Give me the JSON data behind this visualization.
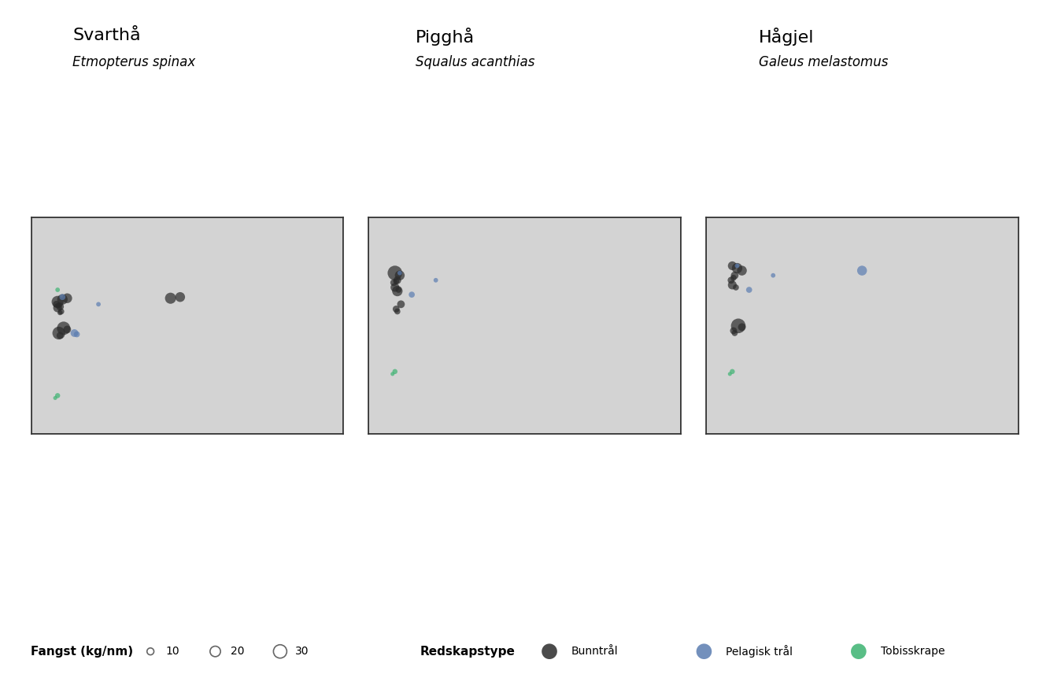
{
  "titles": [
    "Svarthå",
    "Pigghå",
    "Hågjel"
  ],
  "subtitles": [
    "Etmopterus spinax",
    "Squalus acanthias",
    "Galeus melastomus"
  ],
  "background_color": "#ffffff",
  "map_bg_color": "#d3d3d3",
  "land_color": "#d3d3d3",
  "sea_color": "#e8e8e8",
  "map_border_color": "#333333",
  "grid_color": "#cccccc",
  "legend_fangst_label": "Fangst (kg/nm)",
  "legend_redskaps_label": "Redskapstype",
  "legend_sizes": [
    10,
    20,
    30
  ],
  "legend_size_labels": [
    "10",
    "20",
    "30"
  ],
  "gear_types": [
    "Bunntrål",
    "Pelagisk trål",
    "Tobisskrape"
  ],
  "gear_colors": [
    "#2b2b2b",
    "#5b7db1",
    "#3cb371"
  ],
  "map_xlim": [
    4.0,
    17.0
  ],
  "map_ylim": [
    56.5,
    65.5
  ],
  "norway_coast_color": "#000000",
  "panel_bg": "#dcdcdc",
  "svarthaa_points": [
    {
      "lon": 5.1,
      "lat": 62.0,
      "size": 25,
      "gear": 0
    },
    {
      "lon": 5.3,
      "lat": 62.1,
      "size": 20,
      "gear": 0
    },
    {
      "lon": 5.5,
      "lat": 62.15,
      "size": 18,
      "gear": 0
    },
    {
      "lon": 5.2,
      "lat": 61.8,
      "size": 12,
      "gear": 0
    },
    {
      "lon": 5.15,
      "lat": 61.85,
      "size": 8,
      "gear": 0
    },
    {
      "lon": 5.05,
      "lat": 61.9,
      "size": 10,
      "gear": 0
    },
    {
      "lon": 5.1,
      "lat": 61.75,
      "size": 15,
      "gear": 0
    },
    {
      "lon": 5.25,
      "lat": 61.6,
      "size": 8,
      "gear": 0
    },
    {
      "lon": 5.2,
      "lat": 61.55,
      "size": 6,
      "gear": 0
    },
    {
      "lon": 5.35,
      "lat": 60.9,
      "size": 30,
      "gear": 0
    },
    {
      "lon": 5.5,
      "lat": 60.85,
      "size": 12,
      "gear": 0
    },
    {
      "lon": 5.15,
      "lat": 60.7,
      "size": 28,
      "gear": 0
    },
    {
      "lon": 5.2,
      "lat": 60.6,
      "size": 10,
      "gear": 0
    },
    {
      "lon": 5.1,
      "lat": 58.1,
      "size": 6,
      "gear": 2
    },
    {
      "lon": 5.3,
      "lat": 62.2,
      "size": 8,
      "gear": 1
    },
    {
      "lon": 6.8,
      "lat": 61.9,
      "size": 5,
      "gear": 1
    },
    {
      "lon": 10.2,
      "lat": 62.2,
      "size": 18,
      "gear": 0
    },
    {
      "lon": 9.8,
      "lat": 62.15,
      "size": 22,
      "gear": 0
    },
    {
      "lon": 5.8,
      "lat": 60.7,
      "size": 12,
      "gear": 1
    },
    {
      "lon": 5.9,
      "lat": 60.65,
      "size": 8,
      "gear": 1
    },
    {
      "lon": 5.1,
      "lat": 62.5,
      "size": 5,
      "gear": 2
    },
    {
      "lon": 5.0,
      "lat": 58.0,
      "size": 4,
      "gear": 2
    }
  ],
  "pigghaa_points": [
    {
      "lon": 5.1,
      "lat": 63.2,
      "size": 35,
      "gear": 0
    },
    {
      "lon": 5.3,
      "lat": 63.1,
      "size": 18,
      "gear": 0
    },
    {
      "lon": 5.2,
      "lat": 62.9,
      "size": 12,
      "gear": 0
    },
    {
      "lon": 5.15,
      "lat": 62.85,
      "size": 8,
      "gear": 0
    },
    {
      "lon": 5.05,
      "lat": 62.8,
      "size": 10,
      "gear": 0
    },
    {
      "lon": 5.1,
      "lat": 62.6,
      "size": 15,
      "gear": 0
    },
    {
      "lon": 5.25,
      "lat": 62.5,
      "size": 8,
      "gear": 0
    },
    {
      "lon": 5.2,
      "lat": 62.45,
      "size": 20,
      "gear": 0
    },
    {
      "lon": 5.35,
      "lat": 61.9,
      "size": 12,
      "gear": 0
    },
    {
      "lon": 5.15,
      "lat": 61.7,
      "size": 10,
      "gear": 0
    },
    {
      "lon": 5.2,
      "lat": 61.6,
      "size": 8,
      "gear": 0
    },
    {
      "lon": 5.1,
      "lat": 59.1,
      "size": 6,
      "gear": 2
    },
    {
      "lon": 5.3,
      "lat": 63.2,
      "size": 5,
      "gear": 1
    },
    {
      "lon": 6.8,
      "lat": 62.9,
      "size": 5,
      "gear": 1
    },
    {
      "lon": 5.8,
      "lat": 62.3,
      "size": 8,
      "gear": 1
    },
    {
      "lon": 5.0,
      "lat": 59.0,
      "size": 4,
      "gear": 2
    }
  ],
  "haagjel_points": [
    {
      "lon": 5.1,
      "lat": 63.5,
      "size": 15,
      "gear": 0
    },
    {
      "lon": 5.3,
      "lat": 63.4,
      "size": 20,
      "gear": 0
    },
    {
      "lon": 5.5,
      "lat": 63.3,
      "size": 18,
      "gear": 0
    },
    {
      "lon": 5.2,
      "lat": 63.1,
      "size": 12,
      "gear": 0
    },
    {
      "lon": 5.15,
      "lat": 63.0,
      "size": 8,
      "gear": 0
    },
    {
      "lon": 5.05,
      "lat": 62.9,
      "size": 10,
      "gear": 0
    },
    {
      "lon": 5.1,
      "lat": 62.7,
      "size": 15,
      "gear": 0
    },
    {
      "lon": 5.25,
      "lat": 62.6,
      "size": 8,
      "gear": 0
    },
    {
      "lon": 5.35,
      "lat": 61.0,
      "size": 35,
      "gear": 0
    },
    {
      "lon": 5.5,
      "lat": 60.95,
      "size": 12,
      "gear": 0
    },
    {
      "lon": 5.15,
      "lat": 60.8,
      "size": 10,
      "gear": 0
    },
    {
      "lon": 5.2,
      "lat": 60.7,
      "size": 8,
      "gear": 0
    },
    {
      "lon": 5.1,
      "lat": 59.1,
      "size": 6,
      "gear": 2
    },
    {
      "lon": 5.3,
      "lat": 63.5,
      "size": 5,
      "gear": 1
    },
    {
      "lon": 10.5,
      "lat": 63.3,
      "size": 18,
      "gear": 1
    },
    {
      "lon": 6.8,
      "lat": 63.1,
      "size": 5,
      "gear": 1
    },
    {
      "lon": 5.8,
      "lat": 62.5,
      "size": 8,
      "gear": 1
    },
    {
      "lon": 5.0,
      "lat": 59.0,
      "size": 4,
      "gear": 2
    }
  ]
}
